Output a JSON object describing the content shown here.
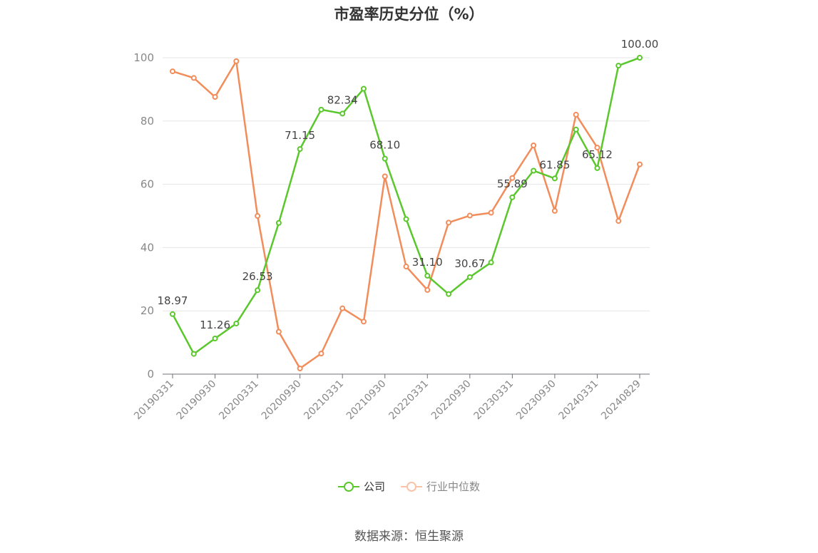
{
  "chart_data": {
    "type": "line",
    "title": "市盈率历史分位（%）",
    "ylim": [
      0,
      100
    ],
    "yticks": [
      0,
      20,
      40,
      60,
      80,
      100
    ],
    "x": [
      "20190331",
      "20190630",
      "20190930",
      "20191231",
      "20200331",
      "20200630",
      "20200930",
      "20201231",
      "20210331",
      "20210630",
      "20210930",
      "20211231",
      "20220331",
      "20220630",
      "20220930",
      "20221231",
      "20230331",
      "20230630",
      "20230930",
      "20231231",
      "20240331",
      "20240630",
      "20240829"
    ],
    "xticks": [
      "20190331",
      "20190930",
      "20200331",
      "20200930",
      "20210331",
      "20210930",
      "20220331",
      "20220930",
      "20230331",
      "20230930",
      "20240331",
      "20240829"
    ],
    "grid": true,
    "legend_position": "bottom",
    "series": [
      {
        "name": "公司",
        "color": "#5ac72c",
        "values": [
          18.97,
          6.4,
          11.26,
          16.0,
          26.53,
          47.8,
          71.15,
          83.6,
          82.34,
          90.2,
          68.1,
          49.0,
          31.1,
          25.3,
          30.67,
          35.3,
          55.89,
          64.3,
          61.85,
          77.3,
          65.12,
          97.5,
          100.0
        ],
        "labels": [
          "18.97",
          null,
          "11.26",
          null,
          "26.53",
          null,
          "71.15",
          null,
          "82.34",
          null,
          "68.10",
          null,
          "31.10",
          null,
          "30.67",
          null,
          "55.89",
          null,
          "61.85",
          null,
          "65.12",
          null,
          "100.00"
        ]
      },
      {
        "name": "行业中位数",
        "color": "#f28c5a",
        "values": [
          95.7,
          93.6,
          87.6,
          98.9,
          50.0,
          13.4,
          1.8,
          6.5,
          20.8,
          16.6,
          62.5,
          34.0,
          26.6,
          47.9,
          50.1,
          51.0,
          62.0,
          72.3,
          51.6,
          82.0,
          71.6,
          48.4,
          66.3
        ]
      }
    ]
  },
  "source": "数据来源：恒生聚源"
}
